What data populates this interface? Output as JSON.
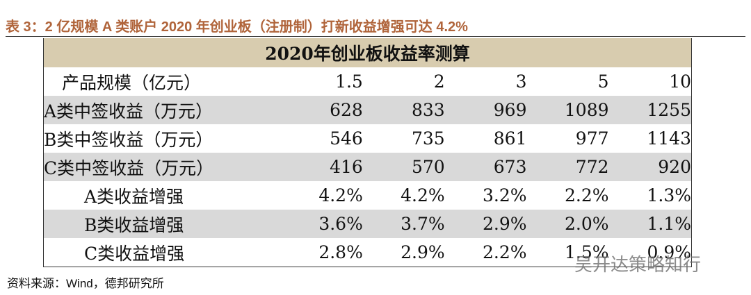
{
  "header": {
    "title": "表 3：2 亿规模 A 类账户 2020 年创业板（注册制）打新收益增强可达 4.2%"
  },
  "table": {
    "title": "2020年创业板收益率测算",
    "rows": [
      [
        "产品规模（亿元）",
        "1.5",
        "2",
        "3",
        "5",
        "10"
      ],
      [
        "A类中签收益（万元）",
        "628",
        "833",
        "969",
        "1089",
        "1255"
      ],
      [
        "B类中签收益（万元）",
        "546",
        "735",
        "861",
        "977",
        "1143"
      ],
      [
        "C类中签收益（万元）",
        "416",
        "570",
        "673",
        "772",
        "920"
      ],
      [
        "A类收益增强",
        "4.2%",
        "4.2%",
        "3.2%",
        "2.2%",
        "1.3%"
      ],
      [
        "B类收益增强",
        "3.6%",
        "3.7%",
        "2.9%",
        "2.0%",
        "1.1%"
      ],
      [
        "C类收益增强",
        "2.8%",
        "2.9%",
        "2.2%",
        "1.5%",
        "0.9%"
      ]
    ]
  },
  "footer": {
    "source": "资料来源：Wind，德邦研究所"
  },
  "watermark": "吴开达策略知行"
}
